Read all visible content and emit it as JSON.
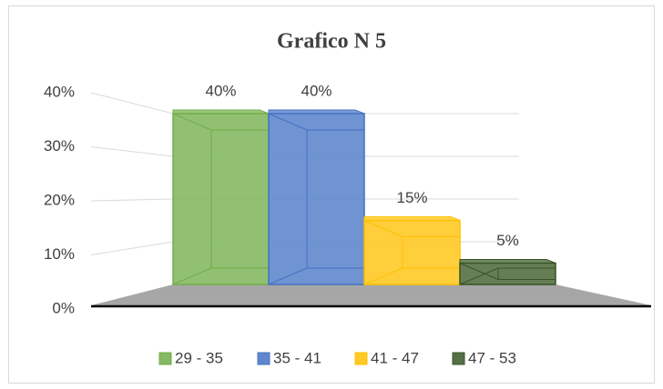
{
  "chart_data": {
    "type": "bar3d",
    "title": "Grafico N 5",
    "categories": [
      null
    ],
    "series": [
      {
        "name": "29 - 35",
        "color": "#70ad47",
        "values": [
          40
        ],
        "value_labels": [
          "40%"
        ]
      },
      {
        "name": "35 - 41",
        "color": "#4472c4",
        "values": [
          40
        ],
        "value_labels": [
          "40%"
        ]
      },
      {
        "name": "41 - 47",
        "color": "#ffc000",
        "values": [
          15
        ],
        "value_labels": [
          "15%"
        ]
      },
      {
        "name": "47 - 53",
        "color": "#375623",
        "values": [
          5
        ],
        "value_labels": [
          "5%"
        ]
      }
    ],
    "ylim": [
      0,
      40
    ],
    "yticks": [
      {
        "value": 0,
        "label": "0%"
      },
      {
        "value": 10,
        "label": "10%"
      },
      {
        "value": 20,
        "label": "20%"
      },
      {
        "value": 30,
        "label": "30%"
      },
      {
        "value": 40,
        "label": "40%"
      }
    ],
    "grid": true,
    "legend": "bottom"
  }
}
